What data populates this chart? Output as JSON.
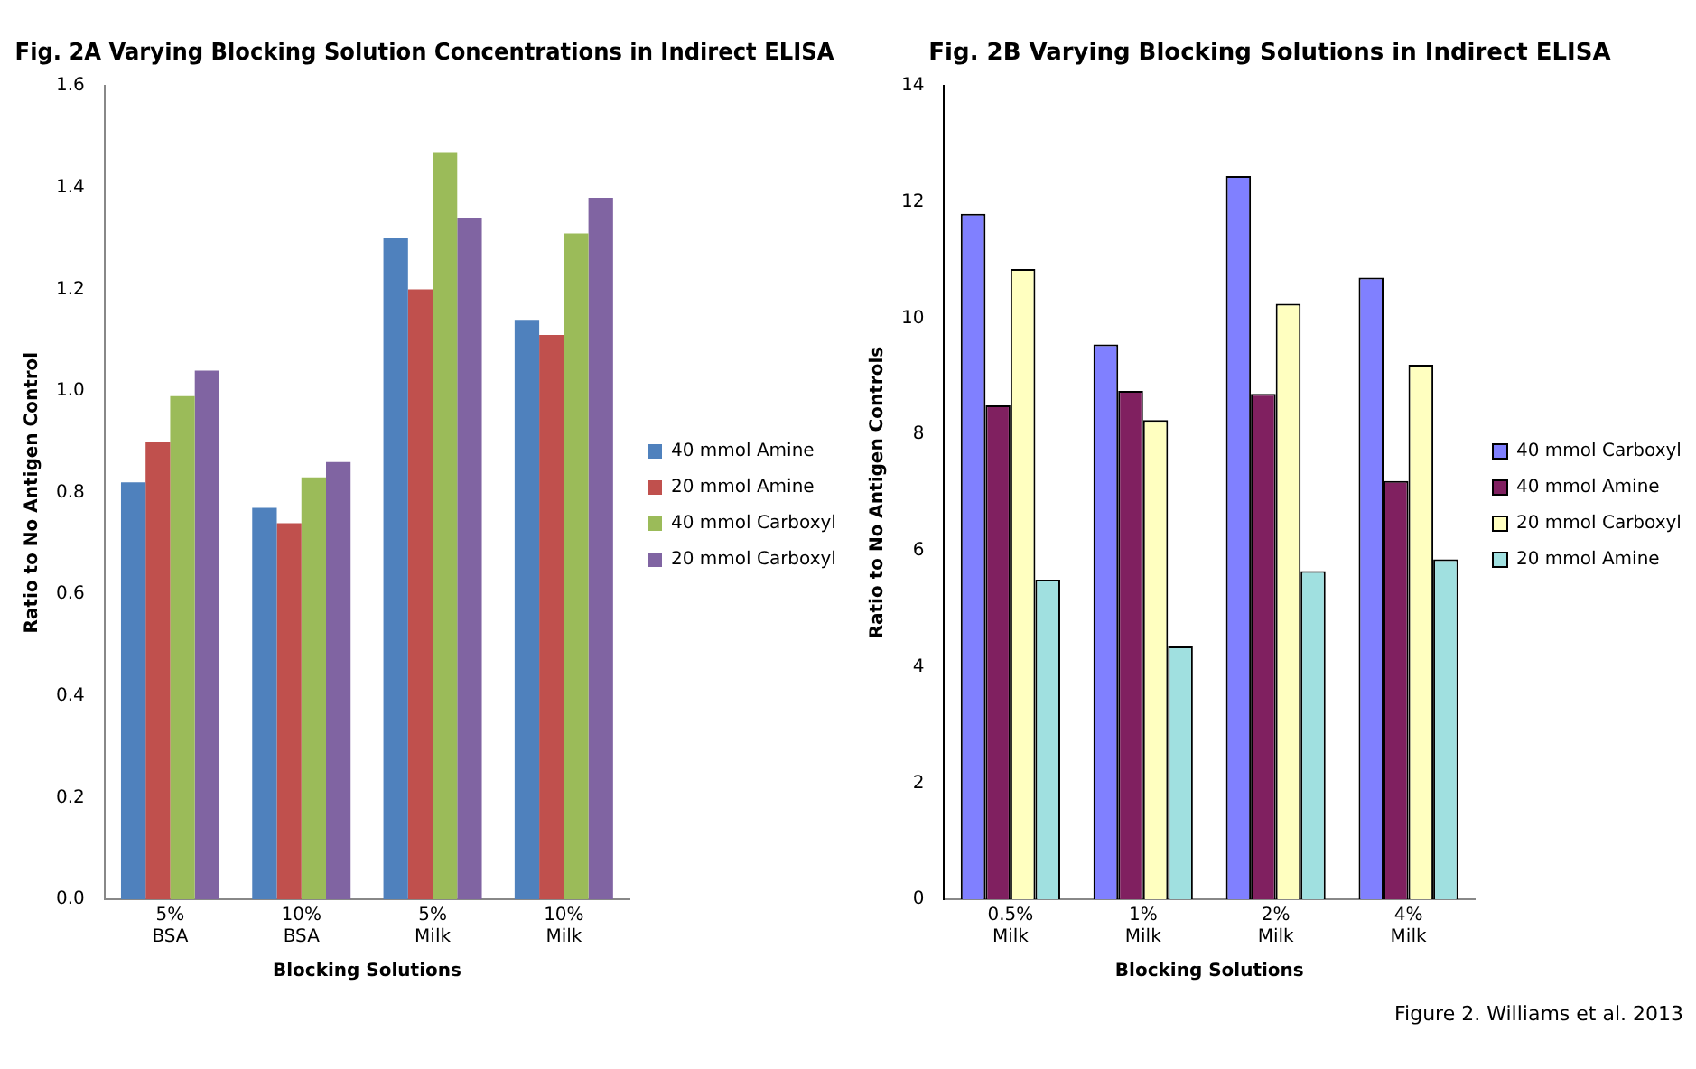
{
  "chart_data": [
    {
      "type": "bar",
      "title": "Fig. 2A Varying Blocking Solution Concentrations in Indirect ELISA",
      "xlabel": "Blocking Solutions",
      "ylabel": "Ratio to No Antigen Control",
      "categories": [
        "5% BSA",
        "10% BSA",
        "5% Milk",
        "10% Milk"
      ],
      "series": [
        {
          "name": "40 mmol Amine",
          "color": "#4f81bd",
          "values": [
            0.82,
            0.77,
            1.3,
            1.14
          ]
        },
        {
          "name": "20 mmol Amine",
          "color": "#c0504d",
          "values": [
            0.9,
            0.74,
            1.2,
            1.11
          ]
        },
        {
          "name": "40 mmol Carboxyl",
          "color": "#9bbb59",
          "values": [
            0.99,
            0.83,
            1.47,
            1.31
          ]
        },
        {
          "name": "20 mmol Carboxyl",
          "color": "#8064a2",
          "values": [
            1.04,
            0.86,
            1.34,
            1.38
          ]
        }
      ],
      "ylim": [
        0,
        1.6
      ],
      "yticks": [
        {
          "value": 0,
          "label": "0.0"
        },
        0.2,
        0.4,
        0.6,
        0.8,
        {
          "value": 1,
          "label": "1.0"
        },
        1.2,
        1.4,
        1.6
      ],
      "grid": false,
      "legend": "right"
    },
    {
      "type": "bar",
      "title": "Fig. 2B Varying Blocking Solutions in Indirect ELISA",
      "xlabel": "Blocking Solutions",
      "ylabel": "Ratio to No Antigen Controls",
      "categories": [
        "0.5% Milk",
        "1% Milk",
        "2% Milk",
        "4% Milk"
      ],
      "series": [
        {
          "name": "40 mmol Carboxyl",
          "color": "#8080ff",
          "values": [
            11.8,
            9.55,
            12.45,
            10.7
          ]
        },
        {
          "name": "40 mmol Amine",
          "color": "#802060",
          "values": [
            8.5,
            8.75,
            8.7,
            7.2
          ]
        },
        {
          "name": "20 mmol Carboxyl",
          "color": "#ffffc0",
          "values": [
            10.85,
            8.25,
            10.25,
            9.2
          ]
        },
        {
          "name": "20 mmol Amine",
          "color": "#a0e0e0",
          "values": [
            5.5,
            4.35,
            5.65,
            5.85
          ]
        }
      ],
      "ylim": [
        0,
        14
      ],
      "yticks": [
        0,
        2,
        4,
        6,
        8,
        10,
        12,
        14
      ],
      "grid": false,
      "legend": "right",
      "annotations": [
        "Figure 2. Williams et al. 2013"
      ]
    }
  ]
}
